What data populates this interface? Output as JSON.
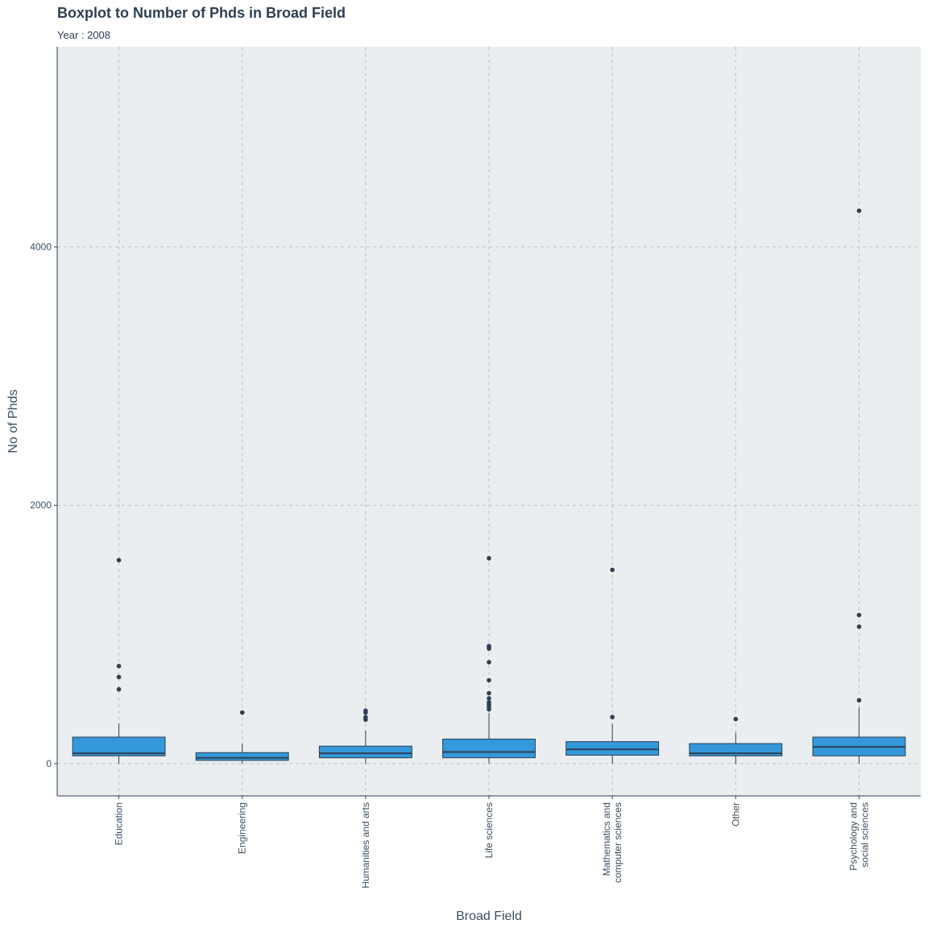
{
  "chart_data": {
    "type": "boxplot",
    "title": "Boxplot to Number of Phds in Broad Field",
    "subtitle": "Year : 2008",
    "xlabel": "Broad Field",
    "ylabel": "No of Phds",
    "ylim": [
      -250,
      5550
    ],
    "yticks": [
      0,
      2000,
      4000
    ],
    "grid": true,
    "colors": {
      "panel": "#eaeef0",
      "box_fill": "#3498db",
      "box_line": "#2e4053",
      "grid": "#b9c2c7",
      "text": "#2e4053"
    },
    "categories": [
      {
        "label_lines": [
          "Education"
        ],
        "q1": 60,
        "median": 80,
        "q3": 205,
        "lower": 0,
        "upper": 310,
        "outliers": [
          575,
          670,
          755,
          1575
        ]
      },
      {
        "label_lines": [
          "Engineering"
        ],
        "q1": 25,
        "median": 45,
        "q3": 85,
        "lower": 0,
        "upper": 155,
        "outliers": [
          395
        ]
      },
      {
        "label_lines": [
          "Humanities and arts"
        ],
        "q1": 45,
        "median": 80,
        "q3": 135,
        "lower": 0,
        "upper": 255,
        "outliers": [
          340,
          360,
          395,
          410
        ]
      },
      {
        "label_lines": [
          "Life sciences"
        ],
        "q1": 45,
        "median": 90,
        "q3": 190,
        "lower": 0,
        "upper": 390,
        "outliers": [
          420,
          440,
          460,
          475,
          505,
          545,
          645,
          785,
          890,
          900,
          910,
          1590
        ]
      },
      {
        "label_lines": [
          "Mathematics and",
          "computer sciences"
        ],
        "q1": 65,
        "median": 110,
        "q3": 170,
        "lower": 0,
        "upper": 310,
        "outliers": [
          360,
          1500
        ]
      },
      {
        "label_lines": [
          "Other"
        ],
        "q1": 60,
        "median": 80,
        "q3": 155,
        "lower": 0,
        "upper": 240,
        "outliers": [
          345
        ]
      },
      {
        "label_lines": [
          "Psychology and",
          "social sciences"
        ],
        "q1": 60,
        "median": 130,
        "q3": 205,
        "lower": 0,
        "upper": 435,
        "outliers": [
          490,
          1060,
          1150,
          4280
        ]
      }
    ]
  }
}
